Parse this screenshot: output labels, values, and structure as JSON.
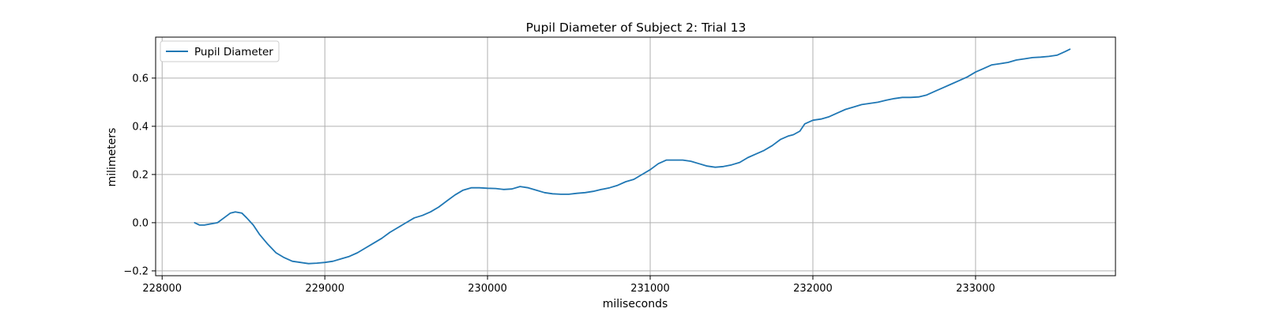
{
  "chart_data": {
    "type": "line",
    "title": "Pupil Diameter of Subject 2: Trial 13",
    "xlabel": "miliseconds",
    "ylabel": "milimeters",
    "xlim": [
      227960,
      233860
    ],
    "ylim": [
      -0.22,
      0.77
    ],
    "xticks": [
      228000,
      229000,
      230000,
      231000,
      232000,
      233000
    ],
    "yticks": [
      -0.2,
      0.0,
      0.2,
      0.4,
      0.6
    ],
    "xtick_labels": [
      "228000",
      "229000",
      "230000",
      "231000",
      "232000",
      "233000"
    ],
    "ytick_labels": [
      "−0.2",
      "0.0",
      "0.2",
      "0.4",
      "0.6"
    ],
    "grid": true,
    "legend_position": "upper-left",
    "series": [
      {
        "name": "Pupil Diameter",
        "color": "#1f77b4",
        "x": [
          228200,
          228230,
          228260,
          228300,
          228340,
          228380,
          228420,
          228450,
          228490,
          228520,
          228560,
          228600,
          228650,
          228700,
          228750,
          228800,
          228850,
          228900,
          228950,
          229000,
          229050,
          229100,
          229150,
          229200,
          229250,
          229300,
          229350,
          229400,
          229450,
          229500,
          229550,
          229600,
          229650,
          229700,
          229750,
          229800,
          229850,
          229900,
          229950,
          230000,
          230050,
          230100,
          230150,
          230200,
          230250,
          230300,
          230350,
          230400,
          230450,
          230500,
          230550,
          230600,
          230650,
          230700,
          230750,
          230800,
          230850,
          230900,
          230950,
          231000,
          231050,
          231100,
          231150,
          231200,
          231250,
          231300,
          231350,
          231400,
          231450,
          231500,
          231550,
          231600,
          231650,
          231700,
          231750,
          231800,
          231850,
          231880,
          231920,
          231950,
          232000,
          232050,
          232100,
          232150,
          232200,
          232250,
          232300,
          232350,
          232400,
          232450,
          232500,
          232550,
          232600,
          232650,
          232700,
          232750,
          232800,
          232850,
          232900,
          232950,
          233000,
          233050,
          233100,
          233150,
          233200,
          233250,
          233300,
          233350,
          233400,
          233450,
          233500,
          233550,
          233580
        ],
        "y": [
          0.0,
          -0.01,
          -0.01,
          -0.005,
          0.0,
          0.02,
          0.04,
          0.045,
          0.04,
          0.02,
          -0.01,
          -0.05,
          -0.09,
          -0.125,
          -0.145,
          -0.16,
          -0.165,
          -0.17,
          -0.168,
          -0.165,
          -0.16,
          -0.15,
          -0.14,
          -0.125,
          -0.105,
          -0.085,
          -0.065,
          -0.04,
          -0.02,
          0.0,
          0.02,
          0.03,
          0.045,
          0.065,
          0.09,
          0.115,
          0.135,
          0.145,
          0.145,
          0.143,
          0.142,
          0.138,
          0.14,
          0.15,
          0.145,
          0.135,
          0.125,
          0.12,
          0.118,
          0.118,
          0.122,
          0.125,
          0.13,
          0.138,
          0.145,
          0.155,
          0.17,
          0.18,
          0.2,
          0.22,
          0.245,
          0.26,
          0.26,
          0.26,
          0.255,
          0.245,
          0.235,
          0.23,
          0.233,
          0.24,
          0.25,
          0.27,
          0.285,
          0.3,
          0.32,
          0.345,
          0.36,
          0.365,
          0.38,
          0.41,
          0.425,
          0.43,
          0.44,
          0.455,
          0.47,
          0.48,
          0.49,
          0.495,
          0.5,
          0.508,
          0.515,
          0.52,
          0.52,
          0.522,
          0.53,
          0.545,
          0.56,
          0.575,
          0.59,
          0.605,
          0.625,
          0.64,
          0.655,
          0.66,
          0.665,
          0.675,
          0.68,
          0.685,
          0.687,
          0.69,
          0.695,
          0.71,
          0.72
        ]
      }
    ]
  }
}
